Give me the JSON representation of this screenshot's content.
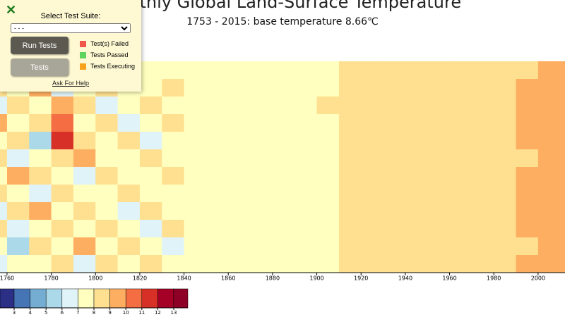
{
  "test_panel": {
    "heading": "Select Test Suite:",
    "select_option": "- - -",
    "run_button": "Run Tests",
    "tests_button": "Tests",
    "status_legend": [
      {
        "label": "Test(s) Failed",
        "color": "#f0564a"
      },
      {
        "label": "Tests Passed",
        "color": "#5fd35f"
      },
      {
        "label": "Tests Executing",
        "color": "#f7a21b"
      }
    ],
    "help_link": "Ask For Help"
  },
  "chart_data": {
    "type": "heatmap",
    "title": "Monthly Global Land-Surface Temperature",
    "subtitle": "1753 - 2015: base temperature 8.66℃",
    "x": [
      1753,
      1760,
      1770,
      1780,
      1790,
      1800,
      1810,
      1820,
      1830,
      1840,
      1850,
      1860,
      1870,
      1880,
      1890,
      1900,
      1910,
      1920,
      1930,
      1940,
      1950,
      1960,
      1970,
      1980,
      1990,
      2000,
      2010
    ],
    "xlim": [
      1753,
      2016
    ],
    "xticks": [
      1760,
      1780,
      1800,
      1820,
      1840,
      1860,
      1880,
      1900,
      1920,
      1940,
      1960,
      1980,
      2000
    ],
    "values": [
      [
        7.2,
        6.4,
        7.8,
        8.9,
        6.9,
        7.5,
        8.3,
        7.1,
        7.6,
        7.7,
        7.9,
        7.6,
        7.8,
        7.5,
        7.9,
        7.8,
        8.1,
        8.4,
        8.5,
        8.6,
        8.4,
        8.5,
        8.7,
        8.8,
        8.9,
        9.3,
        9.4
      ],
      [
        8.1,
        7.3,
        9.4,
        6.8,
        7.9,
        8.6,
        7.0,
        7.7,
        8.2,
        7.8,
        7.6,
        7.9,
        7.7,
        7.8,
        7.6,
        7.9,
        8.2,
        8.5,
        8.6,
        8.5,
        8.4,
        8.6,
        8.6,
        8.9,
        9.0,
        9.4,
        9.5
      ],
      [
        6.6,
        8.2,
        7.4,
        9.8,
        8.0,
        6.9,
        7.8,
        8.4,
        7.3,
        7.9,
        7.7,
        7.8,
        7.9,
        7.6,
        7.8,
        8.0,
        8.3,
        8.4,
        8.7,
        8.6,
        8.5,
        8.5,
        8.7,
        8.8,
        9.1,
        9.3,
        9.6
      ],
      [
        9.2,
        7.0,
        8.5,
        10.4,
        7.4,
        8.1,
        6.7,
        7.9,
        8.0,
        7.8,
        7.9,
        7.7,
        7.8,
        7.9,
        7.7,
        7.8,
        8.2,
        8.6,
        8.5,
        8.7,
        8.6,
        8.4,
        8.6,
        8.9,
        9.0,
        9.5,
        9.4
      ],
      [
        7.6,
        8.8,
        5.9,
        11.2,
        8.4,
        7.2,
        8.0,
        6.8,
        7.7,
        7.6,
        7.8,
        7.9,
        7.6,
        7.8,
        7.9,
        7.7,
        8.1,
        8.5,
        8.6,
        8.4,
        8.7,
        8.5,
        8.5,
        8.8,
        9.1,
        9.2,
        9.5
      ],
      [
        8.4,
        6.2,
        7.9,
        8.2,
        9.1,
        7.6,
        7.3,
        8.1,
        7.4,
        7.7,
        7.6,
        7.8,
        7.9,
        7.7,
        7.8,
        7.9,
        8.3,
        8.4,
        8.5,
        8.6,
        8.6,
        8.6,
        8.7,
        8.9,
        8.9,
        9.4,
        9.6
      ],
      [
        7.1,
        9.0,
        8.3,
        7.5,
        6.6,
        8.8,
        7.9,
        7.2,
        8.0,
        7.9,
        7.8,
        7.6,
        7.7,
        7.9,
        7.7,
        7.8,
        8.1,
        8.6,
        8.4,
        8.5,
        8.5,
        8.7,
        8.6,
        8.8,
        9.0,
        9.3,
        9.5
      ],
      [
        8.7,
        7.4,
        6.8,
        8.6,
        7.8,
        7.0,
        8.5,
        7.6,
        7.3,
        7.8,
        7.7,
        7.9,
        7.8,
        7.6,
        7.9,
        7.8,
        8.2,
        8.5,
        8.7,
        8.6,
        8.4,
        8.5,
        8.8,
        8.8,
        9.1,
        9.4,
        9.4
      ],
      [
        6.9,
        8.1,
        9.6,
        7.2,
        8.3,
        7.7,
        6.5,
        8.2,
        7.8,
        7.7,
        7.9,
        7.7,
        7.6,
        7.8,
        7.8,
        7.9,
        8.3,
        8.4,
        8.6,
        8.5,
        8.6,
        8.6,
        8.7,
        8.9,
        9.0,
        9.3,
        9.6
      ],
      [
        8.0,
        6.7,
        7.5,
        8.9,
        7.1,
        8.4,
        7.6,
        6.9,
        8.1,
        7.9,
        7.6,
        7.8,
        7.9,
        7.7,
        7.6,
        7.8,
        8.1,
        8.6,
        8.5,
        8.7,
        8.5,
        8.4,
        8.6,
        8.8,
        9.1,
        9.5,
        9.5
      ],
      [
        7.4,
        5.6,
        8.6,
        7.7,
        9.0,
        7.3,
        8.2,
        7.5,
        6.8,
        7.8,
        7.8,
        7.9,
        7.7,
        7.8,
        7.9,
        7.7,
        8.2,
        8.5,
        8.6,
        8.6,
        8.6,
        8.5,
        8.7,
        8.9,
        8.9,
        9.2,
        9.7
      ],
      [
        6.2,
        7.9,
        7.0,
        8.3,
        6.4,
        8.0,
        7.4,
        8.7,
        7.5,
        7.6,
        7.7,
        7.8,
        7.8,
        7.9,
        7.7,
        7.9,
        8.3,
        8.4,
        8.5,
        8.5,
        8.7,
        8.6,
        8.6,
        8.8,
        9.0,
        9.4,
        9.5
      ]
    ],
    "legend": {
      "ticks": [
        3,
        4,
        5,
        6,
        7,
        8,
        9,
        10,
        11,
        12,
        13
      ],
      "colors": [
        "#2b2f85",
        "#4575b4",
        "#74add1",
        "#abd9e9",
        "#e0f3f8",
        "#ffffbf",
        "#fee090",
        "#fdae61",
        "#f46d43",
        "#d73027",
        "#a50026",
        "#8e0026"
      ]
    }
  }
}
